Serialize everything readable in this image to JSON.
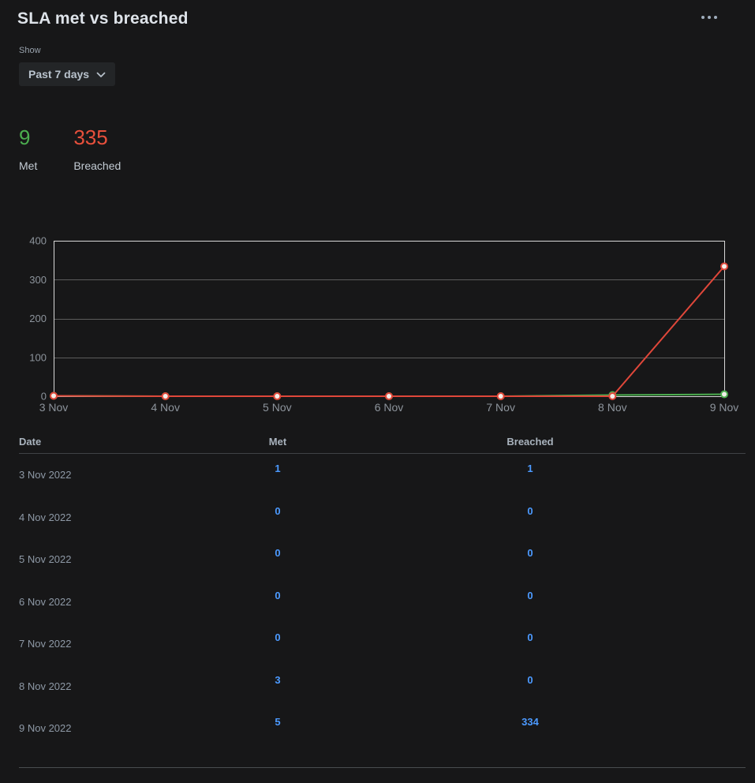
{
  "header": {
    "title": "SLA met vs breached",
    "more_icon": "more-options-icon"
  },
  "controls": {
    "show_label": "Show",
    "period_value": "Past 7 days",
    "chevron_icon": "chevron-down-icon"
  },
  "summary": {
    "met": {
      "value": "9",
      "label": "Met",
      "color": "#4cae4f"
    },
    "breached": {
      "value": "335",
      "label": "Breached",
      "color": "#e8503c"
    }
  },
  "chart_data": {
    "type": "line",
    "title": "SLA met vs breached",
    "x": [
      "3 Nov",
      "4 Nov",
      "5 Nov",
      "6 Nov",
      "7 Nov",
      "8 Nov",
      "9 Nov"
    ],
    "series": [
      {
        "name": "Met",
        "color": "#4cae4f",
        "values": [
          1,
          0,
          0,
          0,
          0,
          3,
          5
        ]
      },
      {
        "name": "Breached",
        "color": "#e0473a",
        "values": [
          1,
          0,
          0,
          0,
          0,
          0,
          334
        ]
      }
    ],
    "ylim": [
      0,
      400
    ],
    "yticks": [
      0,
      100,
      200,
      300,
      400
    ],
    "grid": true,
    "legend": "none",
    "colors": {
      "grid": "#5c5c5c",
      "frame": "#d8d8d8",
      "tick": "#8d949c",
      "marker_fill": "#f3f0ea"
    }
  },
  "table": {
    "headers": [
      "Date",
      "Met",
      "Breached"
    ],
    "rows": [
      {
        "date": "3 Nov 2022",
        "met": "1",
        "breached": "1"
      },
      {
        "date": "4 Nov 2022",
        "met": "0",
        "breached": "0"
      },
      {
        "date": "5 Nov 2022",
        "met": "0",
        "breached": "0"
      },
      {
        "date": "6 Nov 2022",
        "met": "0",
        "breached": "0"
      },
      {
        "date": "7 Nov 2022",
        "met": "0",
        "breached": "0"
      },
      {
        "date": "8 Nov 2022",
        "met": "3",
        "breached": "0"
      },
      {
        "date": "9 Nov 2022",
        "met": "5",
        "breached": "334"
      }
    ],
    "link_color": "#4c9aff"
  }
}
